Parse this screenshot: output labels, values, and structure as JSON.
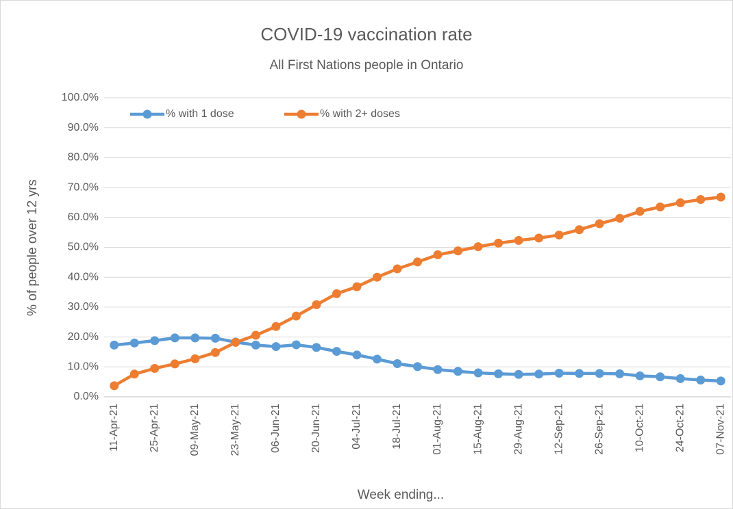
{
  "chart_data": {
    "type": "line",
    "title": "COVID-19 vaccination rate",
    "subtitle": "All First Nations people in Ontario",
    "y_label": "% of people over 12 yrs",
    "x_label": "Week ending...",
    "categories": [
      "11-Apr-21",
      null,
      "25-Apr-21",
      null,
      "09-May-21",
      null,
      "23-May-21",
      null,
      "06-Jun-21",
      null,
      "20-Jun-21",
      null,
      "04-Jul-21",
      null,
      "18-Jul-21",
      null,
      "01-Aug-21",
      null,
      "15-Aug-21",
      null,
      "29-Aug-21",
      null,
      "12-Sep-21",
      null,
      "26-Sep-21",
      null,
      "10-Oct-21",
      null,
      "24-Oct-21",
      null,
      "07-Nov-21"
    ],
    "series": [
      {
        "name": "% with 1 dose",
        "color": "#5b9bd5",
        "values": [
          17.3,
          18.0,
          18.8,
          19.7,
          19.7,
          19.6,
          18.3,
          17.3,
          16.8,
          17.4,
          16.5,
          15.2,
          14.0,
          12.6,
          11.1,
          10.1,
          9.1,
          8.5,
          8.0,
          7.7,
          7.5,
          7.6,
          7.9,
          7.8,
          7.8,
          7.7,
          7.0,
          6.7,
          6.1,
          5.6,
          5.3
        ]
      },
      {
        "name": "% with 2+ doses",
        "color": "#ed7d31",
        "values": [
          3.7,
          7.6,
          9.5,
          11.0,
          12.7,
          14.8,
          18.2,
          20.6,
          23.5,
          27.0,
          30.8,
          34.5,
          36.8,
          40.0,
          42.8,
          45.1,
          47.5,
          48.8,
          50.2,
          51.4,
          52.3,
          53.1,
          54.1,
          55.9,
          57.9,
          59.7,
          62.0,
          63.5,
          64.9,
          66.0,
          66.8
        ]
      }
    ],
    "ylim": [
      0,
      100
    ],
    "yticks": [
      {
        "value": 0,
        "label": "0.0%"
      },
      {
        "value": 10,
        "label": "10.0%"
      },
      {
        "value": 20,
        "label": "20.0%"
      },
      {
        "value": 30,
        "label": "30.0%"
      },
      {
        "value": 40,
        "label": "40.0%"
      },
      {
        "value": 50,
        "label": "50.0%"
      },
      {
        "value": 60,
        "label": "60.0%"
      },
      {
        "value": 70,
        "label": "70.0%"
      },
      {
        "value": 80,
        "label": "80.0%"
      },
      {
        "value": 90,
        "label": "90.0%"
      },
      {
        "value": 100,
        "label": "100.0%"
      }
    ],
    "grid": true,
    "legend": "top"
  }
}
